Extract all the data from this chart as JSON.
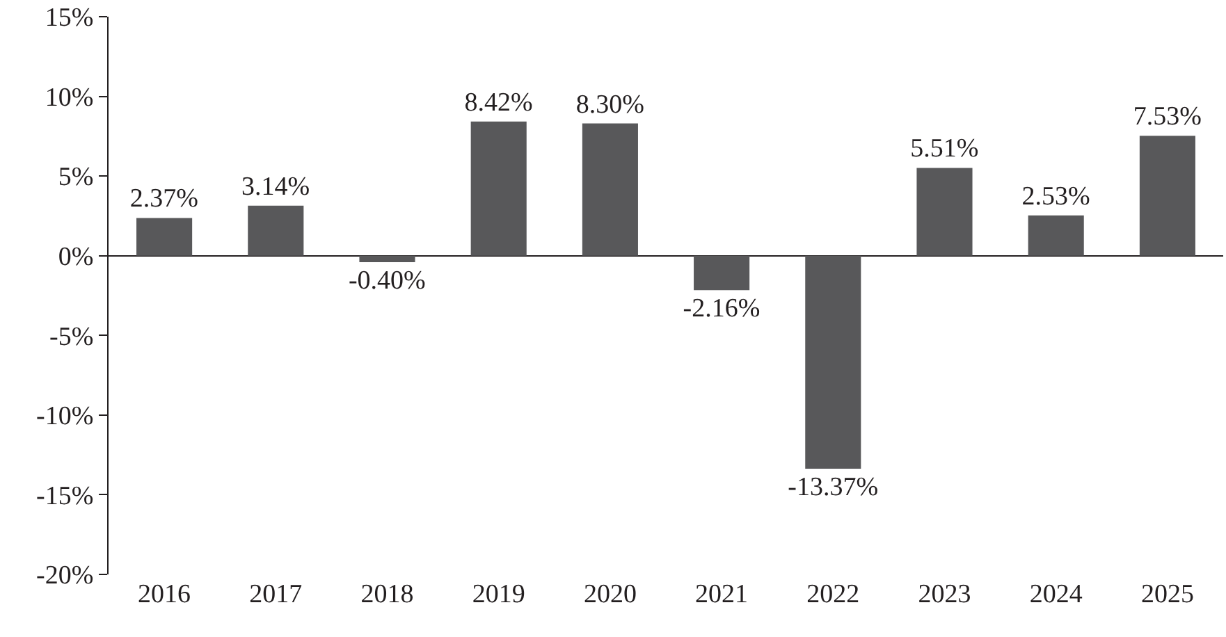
{
  "chart_data": {
    "type": "bar",
    "categories": [
      "2016",
      "2017",
      "2018",
      "2019",
      "2020",
      "2021",
      "2022",
      "2023",
      "2024",
      "2025"
    ],
    "values": [
      2.37,
      3.14,
      -0.4,
      8.42,
      8.3,
      -2.16,
      -13.37,
      5.51,
      2.53,
      7.53
    ],
    "value_labels": [
      "2.37%",
      "3.14%",
      "-0.40%",
      "8.42%",
      "8.30%",
      "-2.16%",
      "-13.37%",
      "5.51%",
      "2.53%",
      "7.53%"
    ],
    "color": "#58585a",
    "ylim": [
      -20,
      15
    ],
    "yticks": [
      {
        "value": -20,
        "label": "-20%"
      },
      {
        "value": -15,
        "label": "-15%"
      },
      {
        "value": -10,
        "label": "-10%"
      },
      {
        "value": -5,
        "label": "-5%"
      },
      {
        "value": 0,
        "label": "0%"
      },
      {
        "value": 5,
        "label": "5%"
      },
      {
        "value": 10,
        "label": "10%"
      },
      {
        "value": 15,
        "label": "15%"
      }
    ]
  }
}
